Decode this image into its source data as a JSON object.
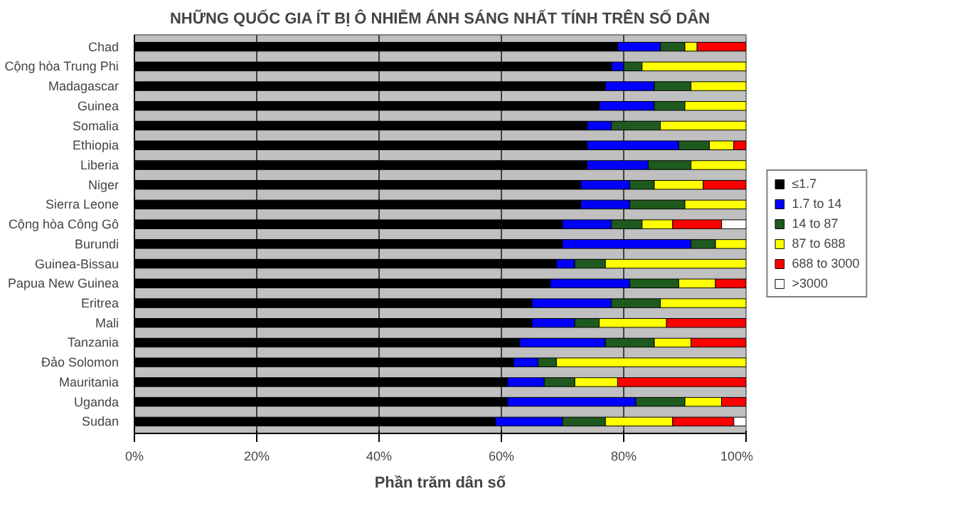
{
  "chart_data": {
    "type": "bar",
    "orientation": "horizontal",
    "stacked": true,
    "title": "NHỮNG QUỐC GIA ÍT BỊ Ô NHIỄM ÁNH SÁNG NHẤT TÍNH TRÊN SỐ DÂN",
    "xlabel": "Phần trăm dân số",
    "categories": [
      "Chad",
      "Cộng hòa Trung Phi",
      "Madagascar",
      "Guinea",
      "Somalia",
      "Ethiopia",
      "Liberia",
      "Niger",
      "Sierra Leone",
      "Cộng hòa Công Gô",
      "Burundi",
      "Guinea-Bissau",
      "Papua New Guinea",
      "Eritrea",
      "Mali",
      "Tanzania",
      "Đảo Solomon",
      "Mauritania",
      "Uganda",
      "Sudan"
    ],
    "series": [
      {
        "name": "≤1.7",
        "color": "#000000",
        "values": [
          79,
          78,
          77,
          76,
          74,
          74,
          74,
          73,
          73,
          70,
          70,
          69,
          68,
          65,
          65,
          63,
          62,
          61,
          61,
          59
        ]
      },
      {
        "name": "1.7 to 14",
        "color": "#0000ff",
        "values": [
          7,
          2,
          8,
          9,
          4,
          15,
          10,
          8,
          8,
          8,
          21,
          3,
          13,
          13,
          7,
          14,
          4,
          6,
          21,
          11
        ]
      },
      {
        "name": "14 to 87",
        "color": "#1e5a1e",
        "values": [
          4,
          3,
          6,
          5,
          8,
          5,
          7,
          4,
          9,
          5,
          4,
          5,
          8,
          8,
          4,
          8,
          3,
          5,
          8,
          7
        ]
      },
      {
        "name": "87 to 688",
        "color": "#ffff00",
        "values": [
          2,
          17,
          9,
          10,
          14,
          4,
          9,
          8,
          10,
          5,
          5,
          23,
          6,
          14,
          11,
          6,
          31,
          7,
          6,
          11
        ]
      },
      {
        "name": "688 to 3000",
        "color": "#ff0000",
        "values": [
          8,
          null,
          null,
          null,
          null,
          2,
          null,
          7,
          null,
          8,
          null,
          null,
          5,
          null,
          13,
          9,
          null,
          21,
          4,
          10
        ]
      },
      {
        "name": ">3000",
        "color": "#ffffff",
        "values": [
          null,
          null,
          null,
          null,
          null,
          null,
          null,
          null,
          null,
          4,
          null,
          null,
          null,
          null,
          null,
          null,
          null,
          null,
          null,
          2
        ]
      }
    ],
    "xlim": [
      0,
      100
    ],
    "xticks": [
      {
        "value": 0,
        "label": "0%"
      },
      {
        "value": 20,
        "label": "20%"
      },
      {
        "value": 40,
        "label": "40%"
      },
      {
        "value": 60,
        "label": "60%"
      },
      {
        "value": 80,
        "label": "80%"
      },
      {
        "value": 100,
        "label": "100%"
      }
    ],
    "grid": "x",
    "legend": "right"
  }
}
